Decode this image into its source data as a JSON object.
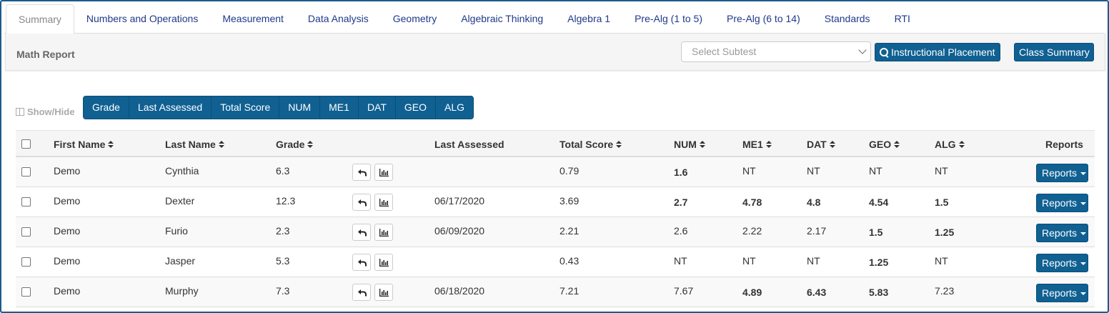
{
  "tabs": [
    {
      "label": "Summary",
      "active": true
    },
    {
      "label": "Numbers and Operations"
    },
    {
      "label": "Measurement"
    },
    {
      "label": "Data Analysis"
    },
    {
      "label": "Geometry"
    },
    {
      "label": "Algebraic Thinking"
    },
    {
      "label": "Algebra 1"
    },
    {
      "label": "Pre-Alg (1 to 5)"
    },
    {
      "label": "Pre-Alg (6 to 14)"
    },
    {
      "label": "Standards"
    },
    {
      "label": "RTI"
    }
  ],
  "panel": {
    "title": "Math Report",
    "select_placeholder": "Select Subtest",
    "instructional_placement": "Instructional Placement",
    "class_summary": "Class Summary"
  },
  "show_hide": {
    "label": "Show/Hide",
    "toggles": [
      "Grade",
      "Last Assessed",
      "Total Score",
      "NUM",
      "ME1",
      "DAT",
      "GEO",
      "ALG"
    ]
  },
  "table": {
    "headers": {
      "first_name": "First Name",
      "last_name": "Last Name",
      "grade": "Grade",
      "last_assessed": "Last Assessed",
      "total_score": "Total Score",
      "num": "NUM",
      "me1": "ME1",
      "dat": "DAT",
      "geo": "GEO",
      "alg": "ALG",
      "reports": "Reports"
    },
    "reports_label": "Reports",
    "rows": [
      {
        "first": "Demo",
        "last": "Cynthia",
        "grade": "6.3",
        "assessed": "",
        "total": "0.79",
        "num": "1.6",
        "me1": "NT",
        "dat": "NT",
        "geo": "NT",
        "alg": "NT",
        "bold": {
          "num": true,
          "me1": false,
          "dat": false,
          "geo": false,
          "alg": false
        }
      },
      {
        "first": "Demo",
        "last": "Dexter",
        "grade": "12.3",
        "assessed": "06/17/2020",
        "total": "3.69",
        "num": "2.7",
        "me1": "4.78",
        "dat": "4.8",
        "geo": "4.54",
        "alg": "1.5",
        "bold": {
          "num": true,
          "me1": true,
          "dat": true,
          "geo": true,
          "alg": true
        }
      },
      {
        "first": "Demo",
        "last": "Furio",
        "grade": "2.3",
        "assessed": "06/09/2020",
        "total": "2.21",
        "num": "2.6",
        "me1": "2.22",
        "dat": "2.17",
        "geo": "1.5",
        "alg": "1.25",
        "bold": {
          "num": false,
          "me1": false,
          "dat": false,
          "geo": true,
          "alg": true
        }
      },
      {
        "first": "Demo",
        "last": "Jasper",
        "grade": "5.3",
        "assessed": "",
        "total": "0.43",
        "num": "NT",
        "me1": "NT",
        "dat": "NT",
        "geo": "1.25",
        "alg": "NT",
        "bold": {
          "num": false,
          "me1": false,
          "dat": false,
          "geo": true,
          "alg": false
        }
      },
      {
        "first": "Demo",
        "last": "Murphy",
        "grade": "7.3",
        "assessed": "06/18/2020",
        "total": "7.21",
        "num": "7.67",
        "me1": "4.89",
        "dat": "6.43",
        "geo": "5.83",
        "alg": "7.23",
        "bold": {
          "num": false,
          "me1": true,
          "dat": true,
          "geo": true,
          "alg": false
        }
      }
    ]
  },
  "colors": {
    "accent": "#106092",
    "tab_link": "#1e3a8a",
    "frame": "#1e5a8c"
  }
}
